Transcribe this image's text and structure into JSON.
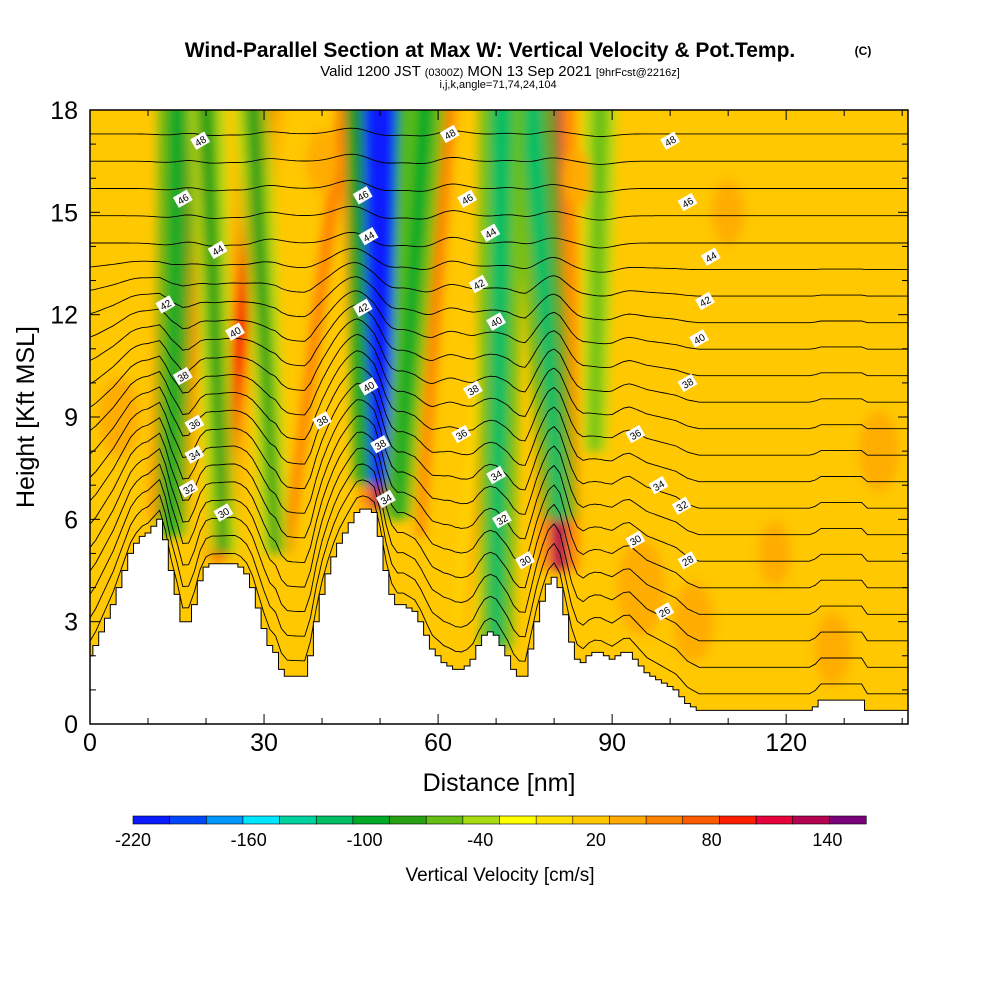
{
  "chart_data": {
    "type": "heatmap",
    "title": "Wind-Parallel Section at Max W: Vertical Velocity & Pot.Temp.",
    "title_mark": "(C)",
    "subtitle_main": "Valid 1200 JST",
    "subtitle_utc": "(0300Z)",
    "subtitle_date": "MON 13 Sep 2021",
    "subtitle_fcst": "[9hrFcst@2216z]",
    "subtitle_index": "i,j,k,angle=71,74,24,104",
    "xlabel": "Distance [nm]",
    "ylabel": "Height [Kft MSL]",
    "xlim": [
      0,
      141
    ],
    "ylim": [
      0,
      18
    ],
    "x_ticks": [
      0,
      30,
      60,
      90,
      120
    ],
    "y_ticks": [
      0,
      3,
      6,
      9,
      12,
      15,
      18
    ],
    "colorbar": {
      "label": "Vertical Velocity [cm/s]",
      "min": -220,
      "max": 160,
      "step": 20,
      "tick_labels": [
        "-220",
        "-160",
        "-100",
        "-40",
        "20",
        "80",
        "140"
      ],
      "colors": [
        "#0a1aff",
        "#0046ff",
        "#0096ff",
        "#00e6ff",
        "#00d2a0",
        "#00be64",
        "#00aa28",
        "#28a014",
        "#64be14",
        "#aadc14",
        "#ffff00",
        "#ffe100",
        "#ffc800",
        "#ffaa00",
        "#ff8200",
        "#ff5a00",
        "#ff1e00",
        "#e6003c",
        "#b40050",
        "#780078"
      ]
    },
    "terrain_profile": {
      "x": [
        0,
        1,
        2,
        3,
        4,
        5,
        6,
        7,
        8,
        9,
        10,
        11,
        12,
        13,
        14,
        15,
        16,
        17,
        18,
        19,
        20,
        21,
        22,
        23,
        24,
        25,
        26,
        27,
        28,
        29,
        30,
        31,
        32,
        33,
        34,
        35,
        36,
        37,
        38,
        39,
        40,
        41,
        42,
        43,
        44,
        45,
        46,
        47,
        48,
        49,
        50,
        51,
        52,
        53,
        54,
        55,
        56,
        57,
        58,
        59,
        60,
        61,
        62,
        63,
        64,
        65,
        66,
        67,
        68,
        69,
        70,
        71,
        72,
        73,
        74,
        75,
        76,
        77,
        78,
        79,
        80,
        81,
        82,
        83,
        84,
        85,
        86,
        87,
        88,
        89,
        90,
        91,
        92,
        93,
        94,
        95,
        96,
        97,
        98,
        99,
        100,
        101,
        102,
        103,
        104,
        105,
        106,
        107,
        108,
        109,
        110,
        111,
        112,
        113,
        114,
        115,
        116,
        117,
        118,
        119,
        120,
        121,
        122,
        123,
        124,
        125,
        126,
        127,
        128,
        129,
        130,
        131,
        132,
        133,
        134,
        135,
        136,
        137,
        138,
        139,
        140,
        141
      ],
      "h": [
        2.0,
        2.3,
        2.7,
        3.1,
        3.5,
        4.0,
        4.5,
        5.0,
        5.3,
        5.5,
        5.6,
        5.8,
        6.0,
        5.4,
        4.5,
        3.8,
        3.0,
        3.0,
        3.5,
        4.2,
        4.6,
        4.7,
        4.7,
        4.7,
        4.7,
        4.7,
        4.6,
        4.4,
        4.0,
        3.4,
        2.8,
        2.3,
        2.1,
        1.6,
        1.4,
        1.4,
        1.4,
        1.4,
        2.0,
        3.0,
        3.8,
        4.4,
        4.9,
        5.3,
        5.6,
        5.9,
        6.2,
        6.3,
        6.3,
        6.2,
        5.5,
        4.5,
        3.8,
        3.5,
        3.5,
        3.4,
        3.3,
        3.0,
        2.6,
        2.2,
        2.0,
        1.8,
        1.7,
        1.6,
        1.6,
        1.7,
        1.9,
        2.3,
        2.6,
        2.7,
        2.6,
        2.3,
        2.0,
        1.6,
        1.4,
        1.4,
        2.2,
        3.0,
        3.6,
        4.1,
        4.3,
        4.0,
        3.2,
        2.4,
        1.9,
        1.8,
        2.0,
        2.1,
        2.1,
        2.0,
        1.9,
        2.0,
        2.1,
        2.1,
        1.9,
        1.7,
        1.5,
        1.4,
        1.3,
        1.2,
        1.1,
        1.0,
        0.8,
        0.6,
        0.5,
        0.4,
        0.4,
        0.4,
        0.4,
        0.4,
        0.4,
        0.4,
        0.4,
        0.4,
        0.4,
        0.4,
        0.4,
        0.4,
        0.4,
        0.4,
        0.4,
        0.4,
        0.4,
        0.4,
        0.4,
        0.5,
        0.7,
        0.7,
        0.7,
        0.7,
        0.7,
        0.7,
        0.7,
        0.7,
        0.4,
        0.4,
        0.4,
        0.4,
        0.4,
        0.4,
        0.4,
        0.4
      ]
    },
    "updrafts": [
      {
        "x_base": 13.5,
        "y_base": 6.0,
        "x_top": 17,
        "w": 140
      },
      {
        "x_base": 22,
        "y_base": 4.8,
        "x_top": 30,
        "w": 100
      },
      {
        "x_base": 34,
        "y_base": 5.0,
        "x_top": 44,
        "w": 70
      },
      {
        "x_base": 50,
        "y_base": 6.3,
        "x_top": 47,
        "w": 150
      },
      {
        "x_base": 57,
        "y_base": 5.5,
        "x_top": 62,
        "w": 60
      },
      {
        "x_base": 81,
        "y_base": 4.5,
        "x_top": 79,
        "w": 150
      },
      {
        "x_base": 65,
        "y_base": 3.0,
        "x_top": 72,
        "w": 40
      }
    ],
    "downdrafts": [
      {
        "x_base": 14,
        "y_base": 5.5,
        "x_top": 15,
        "w": -90
      },
      {
        "x_base": 23,
        "y_base": 5.0,
        "x_top": 20,
        "w": -80
      },
      {
        "x_base": 32,
        "y_base": 5.0,
        "x_top": 28,
        "w": -70
      },
      {
        "x_base": 50,
        "y_base": 7.0,
        "x_top": 50,
        "w": -220
      },
      {
        "x_base": 53,
        "y_base": 6.0,
        "x_top": 58,
        "w": -90
      },
      {
        "x_base": 81,
        "y_base": 6.0,
        "x_top": 76,
        "w": -120
      },
      {
        "x_base": 87,
        "y_base": 8.0,
        "x_top": 88,
        "w": -60
      },
      {
        "x_base": 70,
        "y_base": 2.2,
        "x_top": 71,
        "w": -120
      }
    ],
    "theta_contour_labels": [
      {
        "x": 19,
        "y": 17.1,
        "text": "48"
      },
      {
        "x": 16,
        "y": 15.4,
        "text": "46"
      },
      {
        "x": 22,
        "y": 13.9,
        "text": "44"
      },
      {
        "x": 13,
        "y": 12.3,
        "text": "42"
      },
      {
        "x": 25,
        "y": 11.5,
        "text": "40"
      },
      {
        "x": 16,
        "y": 10.2,
        "text": "38"
      },
      {
        "x": 18,
        "y": 8.8,
        "text": "36"
      },
      {
        "x": 18,
        "y": 7.9,
        "text": "34"
      },
      {
        "x": 17,
        "y": 6.9,
        "text": "32"
      },
      {
        "x": 23,
        "y": 6.2,
        "text": "30"
      },
      {
        "x": 40,
        "y": 8.9,
        "text": "38"
      },
      {
        "x": 62,
        "y": 17.3,
        "text": "48"
      },
      {
        "x": 47,
        "y": 15.5,
        "text": "46"
      },
      {
        "x": 48,
        "y": 14.3,
        "text": "44"
      },
      {
        "x": 47,
        "y": 12.2,
        "text": "42"
      },
      {
        "x": 48,
        "y": 9.9,
        "text": "40"
      },
      {
        "x": 50,
        "y": 8.2,
        "text": "38"
      },
      {
        "x": 51,
        "y": 6.6,
        "text": "34"
      },
      {
        "x": 65,
        "y": 15.4,
        "text": "46"
      },
      {
        "x": 69,
        "y": 14.4,
        "text": "44"
      },
      {
        "x": 67,
        "y": 12.9,
        "text": "42"
      },
      {
        "x": 70,
        "y": 11.8,
        "text": "40"
      },
      {
        "x": 66,
        "y": 9.8,
        "text": "38"
      },
      {
        "x": 64,
        "y": 8.5,
        "text": "36"
      },
      {
        "x": 70,
        "y": 7.3,
        "text": "34"
      },
      {
        "x": 71,
        "y": 6.0,
        "text": "32"
      },
      {
        "x": 75,
        "y": 4.8,
        "text": "30"
      },
      {
        "x": 100,
        "y": 17.1,
        "text": "48"
      },
      {
        "x": 103,
        "y": 15.3,
        "text": "46"
      },
      {
        "x": 107,
        "y": 13.7,
        "text": "44"
      },
      {
        "x": 106,
        "y": 12.4,
        "text": "42"
      },
      {
        "x": 105,
        "y": 11.3,
        "text": "40"
      },
      {
        "x": 103,
        "y": 10.0,
        "text": "38"
      },
      {
        "x": 94,
        "y": 8.5,
        "text": "36"
      },
      {
        "x": 98,
        "y": 7.0,
        "text": "34"
      },
      {
        "x": 102,
        "y": 6.4,
        "text": "32"
      },
      {
        "x": 94,
        "y": 5.4,
        "text": "30"
      },
      {
        "x": 103,
        "y": 4.8,
        "text": "28"
      },
      {
        "x": 99,
        "y": 3.3,
        "text": "26"
      }
    ]
  }
}
